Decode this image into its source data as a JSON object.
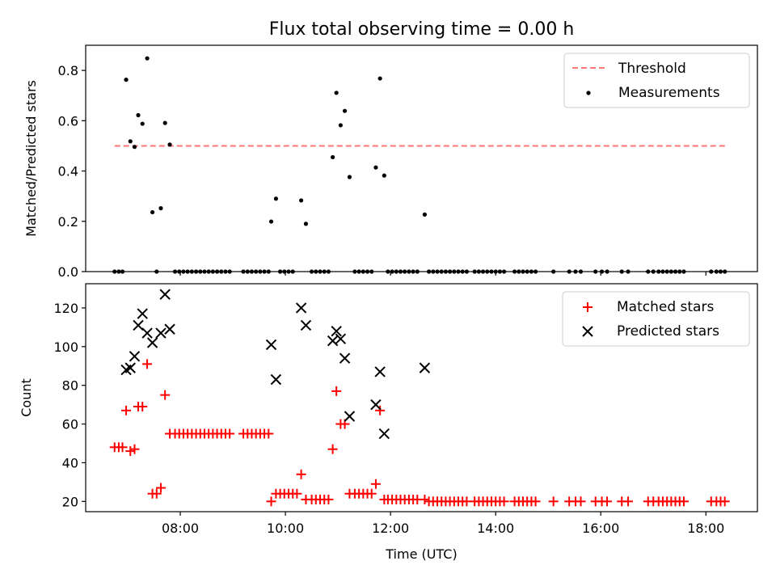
{
  "chart_data": [
    {
      "type": "scatter",
      "title": "Flux total observing time = 0.00 h",
      "xlabel": "",
      "ylabel": "Matched/Predicted stars",
      "xlim": [
        6.2,
        18.98
      ],
      "ylim": [
        0.0,
        0.9
      ],
      "yticks": [
        0.0,
        0.2,
        0.4,
        0.6,
        0.8
      ],
      "ytick_labels": [
        "0.0",
        "0.2",
        "0.4",
        "0.6",
        "0.8"
      ],
      "xticks": [
        8,
        10,
        12,
        14,
        16,
        18
      ],
      "show_xtick_labels": false,
      "grid": false,
      "legend": {
        "position": "top-right",
        "entries": [
          {
            "label": "Threshold",
            "style": "dashed-line",
            "color": "#ff7777"
          },
          {
            "label": "Measurements",
            "style": "dot",
            "color": "#000000"
          }
        ]
      },
      "threshold": {
        "name": "Threshold",
        "x": [
          6.75,
          18.4
        ],
        "y": 0.5,
        "color": "#ff7777"
      },
      "series": [
        {
          "name": "Measurements",
          "color": "#000000",
          "marker": "dot",
          "points": [
            [
              6.97,
              0.763
            ],
            [
              7.05,
              0.518
            ],
            [
              7.13,
              0.496
            ],
            [
              7.2,
              0.622
            ],
            [
              7.28,
              0.588
            ],
            [
              7.37,
              0.848
            ],
            [
              7.47,
              0.236
            ],
            [
              7.63,
              0.252
            ],
            [
              7.71,
              0.591
            ],
            [
              7.8,
              0.505
            ],
            [
              9.73,
              0.199
            ],
            [
              9.82,
              0.29
            ],
            [
              10.3,
              0.283
            ],
            [
              10.39,
              0.19
            ],
            [
              10.9,
              0.455
            ],
            [
              10.97,
              0.711
            ],
            [
              11.05,
              0.582
            ],
            [
              11.13,
              0.639
            ],
            [
              11.22,
              0.376
            ],
            [
              11.72,
              0.414
            ],
            [
              11.8,
              0.768
            ],
            [
              11.88,
              0.382
            ],
            [
              12.65,
              0.227
            ],
            [
              6.75,
              0
            ],
            [
              6.83,
              0
            ],
            [
              6.9,
              0
            ],
            [
              7.55,
              0
            ],
            [
              7.9,
              0
            ],
            [
              7.98,
              0
            ],
            [
              8.06,
              0
            ],
            [
              8.14,
              0
            ],
            [
              8.22,
              0
            ],
            [
              8.3,
              0
            ],
            [
              8.38,
              0
            ],
            [
              8.46,
              0
            ],
            [
              8.54,
              0
            ],
            [
              8.62,
              0
            ],
            [
              8.7,
              0
            ],
            [
              8.78,
              0
            ],
            [
              8.86,
              0
            ],
            [
              8.94,
              0
            ],
            [
              9.2,
              0
            ],
            [
              9.28,
              0
            ],
            [
              9.36,
              0
            ],
            [
              9.44,
              0
            ],
            [
              9.52,
              0
            ],
            [
              9.6,
              0
            ],
            [
              9.68,
              0
            ],
            [
              9.9,
              0
            ],
            [
              9.98,
              0
            ],
            [
              10.06,
              0
            ],
            [
              10.14,
              0
            ],
            [
              10.5,
              0
            ],
            [
              10.58,
              0
            ],
            [
              10.66,
              0
            ],
            [
              10.74,
              0
            ],
            [
              10.82,
              0
            ],
            [
              11.32,
              0
            ],
            [
              11.4,
              0
            ],
            [
              11.48,
              0
            ],
            [
              11.56,
              0
            ],
            [
              11.64,
              0
            ],
            [
              11.95,
              0
            ],
            [
              12.03,
              0
            ],
            [
              12.11,
              0
            ],
            [
              12.19,
              0
            ],
            [
              12.27,
              0
            ],
            [
              12.35,
              0
            ],
            [
              12.43,
              0
            ],
            [
              12.51,
              0
            ],
            [
              12.73,
              0
            ],
            [
              12.81,
              0
            ],
            [
              12.89,
              0
            ],
            [
              12.97,
              0
            ],
            [
              13.05,
              0
            ],
            [
              13.13,
              0
            ],
            [
              13.21,
              0
            ],
            [
              13.29,
              0
            ],
            [
              13.37,
              0
            ],
            [
              13.45,
              0
            ],
            [
              13.6,
              0
            ],
            [
              13.68,
              0
            ],
            [
              13.76,
              0
            ],
            [
              13.84,
              0
            ],
            [
              13.92,
              0
            ],
            [
              14.0,
              0
            ],
            [
              14.08,
              0
            ],
            [
              14.16,
              0
            ],
            [
              14.36,
              0
            ],
            [
              14.44,
              0
            ],
            [
              14.52,
              0
            ],
            [
              14.6,
              0
            ],
            [
              14.68,
              0
            ],
            [
              14.76,
              0
            ],
            [
              15.1,
              0
            ],
            [
              15.4,
              0
            ],
            [
              15.52,
              0
            ],
            [
              15.62,
              0
            ],
            [
              15.9,
              0
            ],
            [
              16.02,
              0
            ],
            [
              16.12,
              0
            ],
            [
              16.4,
              0
            ],
            [
              16.52,
              0
            ],
            [
              16.9,
              0
            ],
            [
              17.0,
              0
            ],
            [
              17.1,
              0
            ],
            [
              17.18,
              0
            ],
            [
              17.26,
              0
            ],
            [
              17.34,
              0
            ],
            [
              17.42,
              0
            ],
            [
              17.5,
              0
            ],
            [
              17.58,
              0
            ],
            [
              18.1,
              0
            ],
            [
              18.2,
              0
            ],
            [
              18.28,
              0
            ],
            [
              18.36,
              0
            ]
          ]
        }
      ]
    },
    {
      "type": "scatter",
      "title": "",
      "xlabel": "Time (UTC)",
      "ylabel": "Count",
      "xlim": [
        6.2,
        18.98
      ],
      "ylim": [
        14.7,
        132.5
      ],
      "yticks": [
        20,
        40,
        60,
        80,
        100,
        120
      ],
      "ytick_labels": [
        "20",
        "40",
        "60",
        "80",
        "100",
        "120"
      ],
      "xticks": [
        8,
        10,
        12,
        14,
        16,
        18
      ],
      "xtick_labels": [
        "08:00",
        "10:00",
        "12:00",
        "14:00",
        "16:00",
        "18:00"
      ],
      "grid": false,
      "legend": {
        "position": "top-right",
        "entries": [
          {
            "label": "Matched stars",
            "style": "plus",
            "color": "#ff0000"
          },
          {
            "label": "Predicted stars",
            "style": "x",
            "color": "#000000"
          }
        ]
      },
      "series": [
        {
          "name": "Matched stars",
          "color": "#ff0000",
          "marker": "plus",
          "points": [
            [
              6.75,
              48
            ],
            [
              6.83,
              48
            ],
            [
              6.9,
              48
            ],
            [
              6.97,
              67
            ],
            [
              7.05,
              46
            ],
            [
              7.13,
              47
            ],
            [
              7.2,
              69
            ],
            [
              7.28,
              69
            ],
            [
              7.37,
              91
            ],
            [
              7.47,
              24
            ],
            [
              7.55,
              24
            ],
            [
              7.63,
              27
            ],
            [
              7.71,
              75
            ],
            [
              7.8,
              55
            ],
            [
              7.9,
              55
            ],
            [
              7.98,
              55
            ],
            [
              8.06,
              55
            ],
            [
              8.14,
              55
            ],
            [
              8.22,
              55
            ],
            [
              8.3,
              55
            ],
            [
              8.38,
              55
            ],
            [
              8.46,
              55
            ],
            [
              8.54,
              55
            ],
            [
              8.62,
              55
            ],
            [
              8.7,
              55
            ],
            [
              8.78,
              55
            ],
            [
              8.86,
              55
            ],
            [
              8.94,
              55
            ],
            [
              9.2,
              55
            ],
            [
              9.28,
              55
            ],
            [
              9.36,
              55
            ],
            [
              9.44,
              55
            ],
            [
              9.52,
              55
            ],
            [
              9.6,
              55
            ],
            [
              9.68,
              55
            ],
            [
              9.73,
              20
            ],
            [
              9.82,
              24
            ],
            [
              9.9,
              24
            ],
            [
              9.98,
              24
            ],
            [
              10.06,
              24
            ],
            [
              10.14,
              24
            ],
            [
              10.22,
              24
            ],
            [
              10.3,
              34
            ],
            [
              10.39,
              21
            ],
            [
              10.5,
              21
            ],
            [
              10.58,
              21
            ],
            [
              10.66,
              21
            ],
            [
              10.74,
              21
            ],
            [
              10.82,
              21
            ],
            [
              10.9,
              47
            ],
            [
              10.97,
              77
            ],
            [
              11.05,
              60
            ],
            [
              11.13,
              60
            ],
            [
              11.22,
              24
            ],
            [
              11.32,
              24
            ],
            [
              11.4,
              24
            ],
            [
              11.48,
              24
            ],
            [
              11.56,
              24
            ],
            [
              11.64,
              24
            ],
            [
              11.72,
              29
            ],
            [
              11.8,
              67
            ],
            [
              11.88,
              21
            ],
            [
              11.95,
              21
            ],
            [
              12.03,
              21
            ],
            [
              12.11,
              21
            ],
            [
              12.19,
              21
            ],
            [
              12.27,
              21
            ],
            [
              12.35,
              21
            ],
            [
              12.43,
              21
            ],
            [
              12.51,
              21
            ],
            [
              12.65,
              21
            ],
            [
              12.73,
              20
            ],
            [
              12.81,
              20
            ],
            [
              12.89,
              20
            ],
            [
              12.97,
              20
            ],
            [
              13.05,
              20
            ],
            [
              13.13,
              20
            ],
            [
              13.21,
              20
            ],
            [
              13.29,
              20
            ],
            [
              13.37,
              20
            ],
            [
              13.45,
              20
            ],
            [
              13.6,
              20
            ],
            [
              13.68,
              20
            ],
            [
              13.76,
              20
            ],
            [
              13.84,
              20
            ],
            [
              13.92,
              20
            ],
            [
              14.0,
              20
            ],
            [
              14.08,
              20
            ],
            [
              14.16,
              20
            ],
            [
              14.36,
              20
            ],
            [
              14.44,
              20
            ],
            [
              14.52,
              20
            ],
            [
              14.6,
              20
            ],
            [
              14.68,
              20
            ],
            [
              14.76,
              20
            ],
            [
              15.1,
              20
            ],
            [
              15.4,
              20
            ],
            [
              15.52,
              20
            ],
            [
              15.62,
              20
            ],
            [
              15.9,
              20
            ],
            [
              16.02,
              20
            ],
            [
              16.12,
              20
            ],
            [
              16.4,
              20
            ],
            [
              16.52,
              20
            ],
            [
              16.9,
              20
            ],
            [
              17.0,
              20
            ],
            [
              17.1,
              20
            ],
            [
              17.18,
              20
            ],
            [
              17.26,
              20
            ],
            [
              17.34,
              20
            ],
            [
              17.42,
              20
            ],
            [
              17.5,
              20
            ],
            [
              17.58,
              20
            ],
            [
              18.1,
              20
            ],
            [
              18.2,
              20
            ],
            [
              18.28,
              20
            ],
            [
              18.36,
              20
            ]
          ]
        },
        {
          "name": "Predicted stars",
          "color": "#000000",
          "marker": "x",
          "points": [
            [
              6.97,
              88
            ],
            [
              7.05,
              89
            ],
            [
              7.13,
              95
            ],
            [
              7.2,
              111
            ],
            [
              7.28,
              117
            ],
            [
              7.37,
              107
            ],
            [
              7.47,
              102
            ],
            [
              7.63,
              107
            ],
            [
              7.71,
              127
            ],
            [
              7.8,
              109
            ],
            [
              9.73,
              101
            ],
            [
              9.82,
              83
            ],
            [
              10.3,
              120
            ],
            [
              10.39,
              111
            ],
            [
              10.9,
              103
            ],
            [
              10.97,
              108
            ],
            [
              11.05,
              104
            ],
            [
              11.13,
              94
            ],
            [
              11.22,
              64
            ],
            [
              11.72,
              70
            ],
            [
              11.8,
              87
            ],
            [
              11.88,
              55
            ],
            [
              12.65,
              89
            ]
          ]
        }
      ]
    }
  ]
}
